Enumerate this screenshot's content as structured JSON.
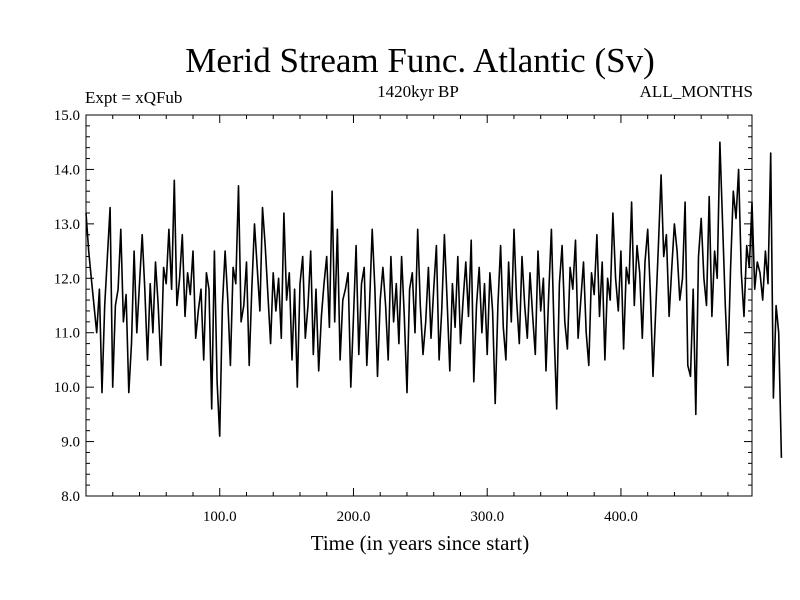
{
  "chart_data": {
    "type": "line",
    "title": "Merid Stream Func. Atlantic (Sv)",
    "subtitle_left": "Expt = xQFub",
    "subtitle_center": "1420kyr BP",
    "subtitle_right": "ALL_MONTHS",
    "xlabel": "Time (in years since start)",
    "ylabel": "",
    "xlim": [
      0,
      498
    ],
    "ylim": [
      8.0,
      15.0
    ],
    "xticks": [
      100,
      200,
      300,
      400
    ],
    "xtick_labels": [
      "100.0",
      "200.0",
      "300.0",
      "400.0"
    ],
    "yticks": [
      8,
      9,
      10,
      11,
      12,
      13,
      14,
      15
    ],
    "ytick_labels": [
      "8.0",
      "9.0",
      "10.0",
      "11.0",
      "12.0",
      "13.0",
      "14.0",
      "15.0"
    ],
    "series": [
      {
        "name": "Merid Stream Func. Atlantic",
        "x_start": 0,
        "x_step": 2,
        "values": [
          13.2,
          12.5,
          12.0,
          11.5,
          11.0,
          11.8,
          9.9,
          11.5,
          12.4,
          13.3,
          10.0,
          11.5,
          11.8,
          12.9,
          11.2,
          11.7,
          9.9,
          10.8,
          12.5,
          11.0,
          11.9,
          12.8,
          11.8,
          10.5,
          11.9,
          11.0,
          12.3,
          11.5,
          10.4,
          12.2,
          11.9,
          12.9,
          11.8,
          13.8,
          11.5,
          12.0,
          12.8,
          11.3,
          12.1,
          11.7,
          12.5,
          10.9,
          11.4,
          11.8,
          10.5,
          12.1,
          11.8,
          9.6,
          12.5,
          10.1,
          9.1,
          11.5,
          12.5,
          11.6,
          10.4,
          12.2,
          11.9,
          13.7,
          11.2,
          11.5,
          12.3,
          10.4,
          11.8,
          13.0,
          12.2,
          11.4,
          13.3,
          12.6,
          11.7,
          10.8,
          12.1,
          11.4,
          12.0,
          10.9,
          13.2,
          11.6,
          12.1,
          10.5,
          11.8,
          10.0,
          11.9,
          12.4,
          10.9,
          11.5,
          12.5,
          10.6,
          11.8,
          10.3,
          11.3,
          11.9,
          12.4,
          11.1,
          13.6,
          11.2,
          12.9,
          10.5,
          11.6,
          11.8,
          12.1,
          10.0,
          11.3,
          12.6,
          10.6,
          11.9,
          12.2,
          10.4,
          11.5,
          12.9,
          11.8,
          10.2,
          11.6,
          12.2,
          11.5,
          10.5,
          12.4,
          11.2,
          11.9,
          10.8,
          12.4,
          11.3,
          9.9,
          11.8,
          12.1,
          11.0,
          12.9,
          11.5,
          10.6,
          11.2,
          12.2,
          10.9,
          11.8,
          12.6,
          10.5,
          11.4,
          12.8,
          11.6,
          10.3,
          11.9,
          11.1,
          12.4,
          10.8,
          11.6,
          12.3,
          11.3,
          12.7,
          10.1,
          11.5,
          12.2,
          11.0,
          11.9,
          10.6,
          12.1,
          11.4,
          9.7,
          11.5,
          12.6,
          11.1,
          10.5,
          12.3,
          11.2,
          12.9,
          11.6,
          10.8,
          12.4,
          11.5,
          10.9,
          12.1,
          11.3,
          10.6,
          12.5,
          11.4,
          12.0,
          10.3,
          11.7,
          12.9,
          11.0,
          9.6,
          11.9,
          12.6,
          11.2,
          10.7,
          12.2,
          11.8,
          12.7,
          10.9,
          11.6,
          12.3,
          11.0,
          10.4,
          12.1,
          11.7,
          12.8,
          11.3,
          12.3,
          10.5,
          12.0,
          11.6,
          13.2,
          12.0,
          11.4,
          12.5,
          10.7,
          12.2,
          11.9,
          13.4,
          11.5,
          12.6,
          12.1,
          10.9,
          12.3,
          12.9,
          11.7,
          10.2,
          11.4,
          12.6,
          13.9,
          12.4,
          12.8,
          11.3,
          12.2,
          13.0,
          12.5,
          11.6,
          12.0,
          13.4,
          10.4,
          10.2,
          11.8,
          9.5,
          12.4,
          13.1,
          12.0,
          11.5,
          13.5,
          11.3,
          12.5,
          12.0,
          14.5,
          13.0,
          11.5,
          10.4,
          12.2,
          13.6,
          13.1,
          14.0,
          12.1,
          11.3,
          12.6,
          12.2,
          13.4,
          11.8,
          12.3,
          12.1,
          11.6,
          12.5,
          11.9,
          14.3,
          9.8,
          11.5,
          11.0,
          8.7
        ]
      }
    ]
  }
}
